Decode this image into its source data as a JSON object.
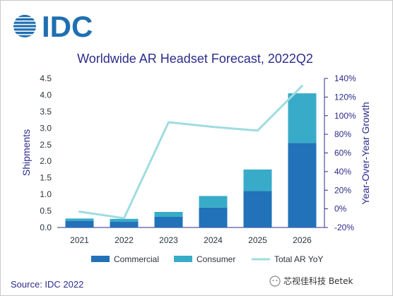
{
  "logo": {
    "text": "IDC",
    "color": "#1f6fb2"
  },
  "chart_data": {
    "type": "bar",
    "stacked": true,
    "title": "Worldwide AR Headset Forecast, 2022Q2",
    "categories": [
      "2021",
      "2022",
      "2023",
      "2024",
      "2025",
      "2026"
    ],
    "series": [
      {
        "name": "Commercial",
        "type": "bar",
        "axis": "left",
        "color": "#2172b8",
        "values": [
          0.2,
          0.17,
          0.32,
          0.6,
          1.1,
          2.55
        ]
      },
      {
        "name": "Consumer",
        "type": "bar",
        "axis": "left",
        "color": "#38abc8",
        "values": [
          0.07,
          0.09,
          0.15,
          0.35,
          0.65,
          1.5
        ]
      },
      {
        "name": "Total AR YoY",
        "type": "line",
        "axis": "right",
        "color": "#9fdcdf",
        "values": [
          -3,
          -10,
          93,
          88,
          84,
          132
        ]
      }
    ],
    "ylabel": "Shipments",
    "ylim": [
      0,
      4.5
    ],
    "yticks": [
      "0.0",
      "0.5",
      "1.0",
      "1.5",
      "2.0",
      "2.5",
      "3.0",
      "3.5",
      "4.0",
      "4.5"
    ],
    "y2label": "Year-Over-Year Growth",
    "y2lim": [
      -20,
      140
    ],
    "y2ticks": [
      "-20%",
      "0%",
      "20%",
      "40%",
      "60%",
      "80%",
      "100%",
      "120%",
      "140%"
    ],
    "grid": false,
    "legend_position": "bottom",
    "source": "Source: IDC 2022"
  },
  "watermark": "芯视佳科技 Betek",
  "colors": {
    "title": "#2c2c8c",
    "axis": "#2c2c8c"
  }
}
